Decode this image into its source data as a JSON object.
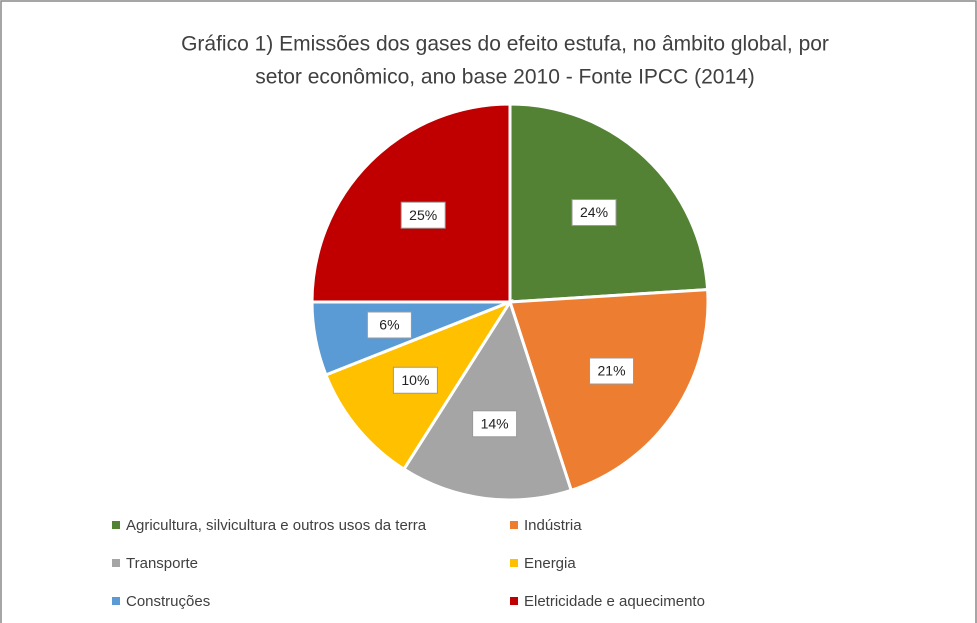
{
  "chart_data": {
    "type": "pie",
    "title": [
      "Gráfico 1) Emissões dos gases do efeito estufa, no âmbito global, por",
      "setor econômico, ano base 2010 - Fonte IPCC (2014)"
    ],
    "categories": [
      "Agricultura, silvicultura e outros usos da terra",
      "Indústria",
      "Transporte",
      "Energia",
      "Construções",
      "Eletricidade e aquecimento"
    ],
    "values": [
      24,
      21,
      14,
      10,
      6,
      25
    ],
    "value_labels": [
      "24%",
      "21%",
      "14%",
      "10%",
      "6%",
      "25%"
    ],
    "colors": [
      "#548235",
      "#ed7d31",
      "#a5a5a5",
      "#ffc000",
      "#5b9bd5",
      "#c00000"
    ],
    "legend": "bottom"
  }
}
